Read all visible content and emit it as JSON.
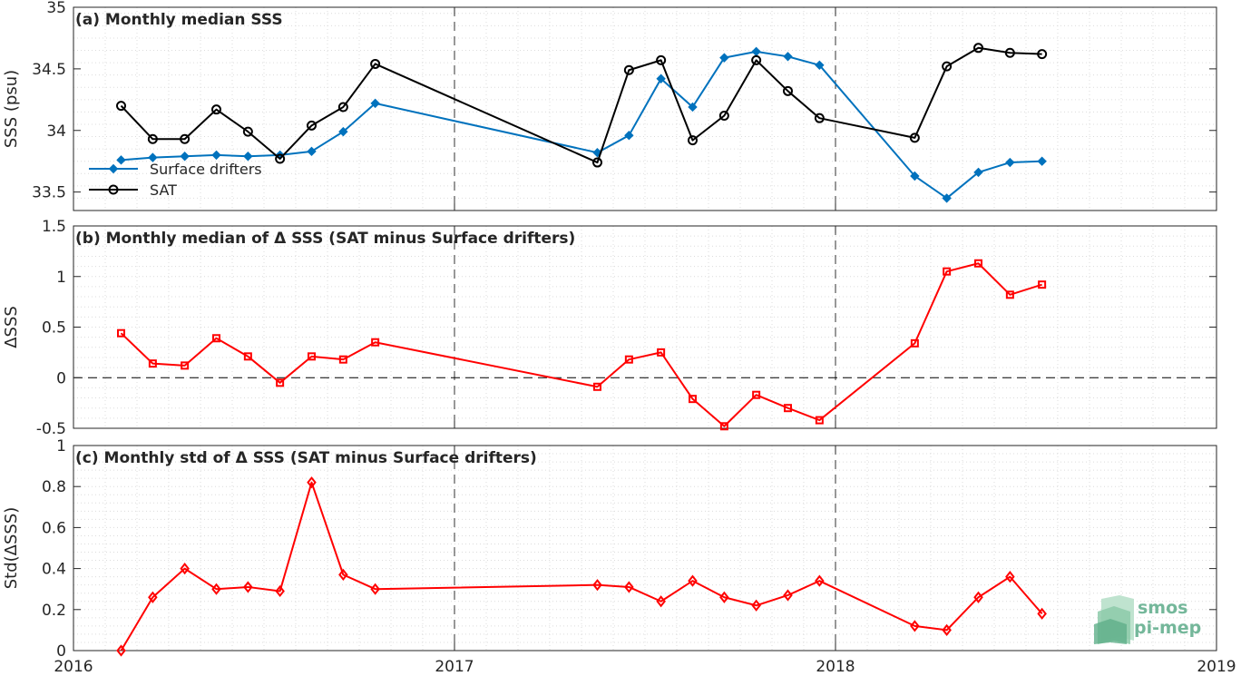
{
  "x_axis": {
    "min": 2016,
    "max": 2019,
    "ticks": [
      2016,
      2017,
      2018,
      2019
    ],
    "tick_labels": [
      "2016",
      "2017",
      "2018",
      "2019"
    ]
  },
  "logo": {
    "line1": "smos",
    "line2": "pi-mep",
    "color": "#74b79a"
  },
  "chart_data": [
    {
      "type": "line",
      "title": "(a) Monthly median SSS",
      "ylabel": "SSS (psu)",
      "ylim": [
        33.35,
        35
      ],
      "yticks": [
        33.5,
        34,
        34.5,
        35
      ],
      "ytick_labels": [
        "33.5",
        "34",
        "34.5",
        "35"
      ],
      "grid": true,
      "legend_position": "bottom-left",
      "series": [
        {
          "name": "Surface drifters",
          "color": "#0072bd",
          "marker": "diamond",
          "points": [
            [
              2016.125,
              33.76
            ],
            [
              2016.208,
              33.78
            ],
            [
              2016.292,
              33.79
            ],
            [
              2016.375,
              33.8
            ],
            [
              2016.458,
              33.79
            ],
            [
              2016.542,
              33.8
            ],
            [
              2016.625,
              33.83
            ],
            [
              2016.708,
              33.99
            ],
            [
              2016.792,
              34.22
            ],
            [
              2017.375,
              33.82
            ],
            [
              2017.458,
              33.96
            ],
            [
              2017.542,
              34.42
            ],
            [
              2017.625,
              34.19
            ],
            [
              2017.708,
              34.59
            ],
            [
              2017.792,
              34.64
            ],
            [
              2017.875,
              34.6
            ],
            [
              2017.958,
              34.53
            ],
            [
              2018.208,
              33.63
            ],
            [
              2018.292,
              33.45
            ],
            [
              2018.375,
              33.66
            ],
            [
              2018.458,
              33.74
            ],
            [
              2018.542,
              33.75
            ]
          ]
        },
        {
          "name": "SAT",
          "color": "#000000",
          "marker": "circle",
          "points": [
            [
              2016.125,
              34.2
            ],
            [
              2016.208,
              33.93
            ],
            [
              2016.292,
              33.93
            ],
            [
              2016.375,
              34.17
            ],
            [
              2016.458,
              33.99
            ],
            [
              2016.542,
              33.77
            ],
            [
              2016.625,
              34.04
            ],
            [
              2016.708,
              34.19
            ],
            [
              2016.792,
              34.54
            ],
            [
              2017.375,
              33.74
            ],
            [
              2017.458,
              34.49
            ],
            [
              2017.542,
              34.57
            ],
            [
              2017.625,
              33.92
            ],
            [
              2017.708,
              34.12
            ],
            [
              2017.792,
              34.57
            ],
            [
              2017.875,
              34.32
            ],
            [
              2017.958,
              34.1
            ],
            [
              2018.208,
              33.94
            ],
            [
              2018.292,
              34.52
            ],
            [
              2018.375,
              34.67
            ],
            [
              2018.458,
              34.63
            ],
            [
              2018.542,
              34.62
            ]
          ]
        }
      ]
    },
    {
      "type": "line",
      "title": "(b) Monthly median of Δ SSS (SAT minus Surface drifters)",
      "ylabel": "ΔSSS",
      "ylim": [
        -0.5,
        1.5
      ],
      "yticks": [
        -0.5,
        0,
        0.5,
        1,
        1.5
      ],
      "ytick_labels": [
        "-0.5",
        "0",
        "0.5",
        "1",
        "1.5"
      ],
      "grid": true,
      "reference_line": 0,
      "series": [
        {
          "color": "#ff0000",
          "marker": "square",
          "points": [
            [
              2016.125,
              0.44
            ],
            [
              2016.208,
              0.14
            ],
            [
              2016.292,
              0.12
            ],
            [
              2016.375,
              0.39
            ],
            [
              2016.458,
              0.21
            ],
            [
              2016.542,
              -0.05
            ],
            [
              2016.625,
              0.21
            ],
            [
              2016.708,
              0.18
            ],
            [
              2016.792,
              0.35
            ],
            [
              2017.375,
              -0.09
            ],
            [
              2017.458,
              0.18
            ],
            [
              2017.542,
              0.25
            ],
            [
              2017.625,
              -0.21
            ],
            [
              2017.708,
              -0.48
            ],
            [
              2017.792,
              -0.17
            ],
            [
              2017.875,
              -0.3
            ],
            [
              2017.958,
              -0.42
            ],
            [
              2018.208,
              0.34
            ],
            [
              2018.292,
              1.05
            ],
            [
              2018.375,
              1.13
            ],
            [
              2018.458,
              0.82
            ],
            [
              2018.542,
              0.92
            ]
          ]
        }
      ]
    },
    {
      "type": "line",
      "title": "(c) Monthly std of Δ SSS (SAT minus Surface drifters)",
      "ylabel": "Std(ΔSSS)",
      "ylim": [
        0,
        1
      ],
      "yticks": [
        0,
        0.2,
        0.4,
        0.6,
        0.8,
        1
      ],
      "ytick_labels": [
        "0",
        "0.2",
        "0.4",
        "0.6",
        "0.8",
        "1"
      ],
      "grid": true,
      "series": [
        {
          "color": "#ff0000",
          "marker": "diamond-open",
          "points": [
            [
              2016.125,
              0.0
            ],
            [
              2016.208,
              0.26
            ],
            [
              2016.292,
              0.4
            ],
            [
              2016.375,
              0.3
            ],
            [
              2016.458,
              0.31
            ],
            [
              2016.542,
              0.29
            ],
            [
              2016.625,
              0.82
            ],
            [
              2016.708,
              0.37
            ],
            [
              2016.792,
              0.3
            ],
            [
              2017.375,
              0.32
            ],
            [
              2017.458,
              0.31
            ],
            [
              2017.542,
              0.24
            ],
            [
              2017.625,
              0.34
            ],
            [
              2017.708,
              0.26
            ],
            [
              2017.792,
              0.22
            ],
            [
              2017.875,
              0.27
            ],
            [
              2017.958,
              0.34
            ],
            [
              2018.208,
              0.12
            ],
            [
              2018.292,
              0.1
            ],
            [
              2018.375,
              0.26
            ],
            [
              2018.458,
              0.36
            ],
            [
              2018.542,
              0.18
            ]
          ]
        }
      ]
    }
  ]
}
